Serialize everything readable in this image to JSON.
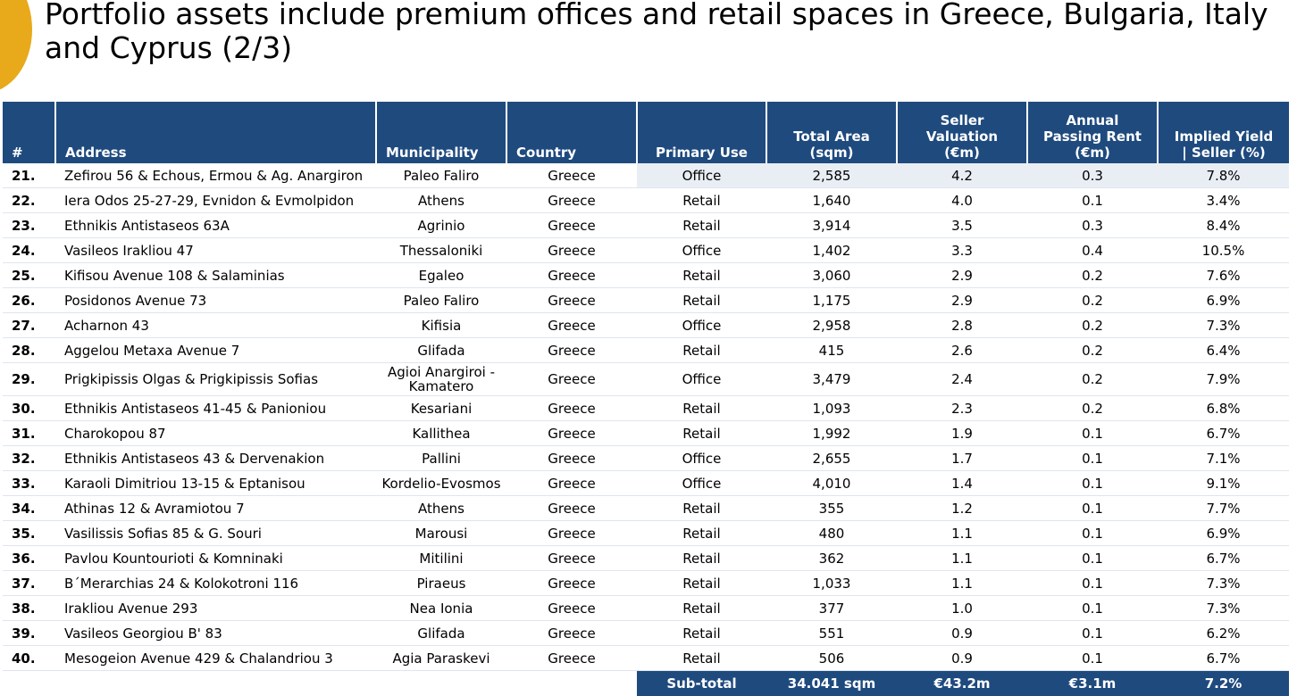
{
  "title": "Portfolio assets include premium offices and retail spaces in Greece, Bulgaria, Italy and Cyprus (2/3)",
  "colors": {
    "header": "#1f4a7e",
    "accent": "#e8a91a",
    "shade": "#e9eef5"
  },
  "table": {
    "headers": {
      "num": "#",
      "address": "Address",
      "municipality": "Municipality",
      "country": "Country",
      "use": "Primary Use",
      "area_1": "Total Area",
      "area_2": "(sqm)",
      "val_1": "Seller",
      "val_2": "Valuation",
      "val_3": "(€m)",
      "rent_1": "Annual",
      "rent_2": "Passing Rent",
      "rent_3": "(€m)",
      "yield_1": "Implied Yield",
      "yield_2": "| Seller (%)"
    },
    "rows": [
      {
        "num": "21.",
        "address": "Zefirou 56 & Echous, Ermou & Ag. Anargiron",
        "municipality": "Paleo Faliro",
        "country": "Greece",
        "use": "Office",
        "area": "2,585",
        "valuation": "4.2",
        "rent": "0.3",
        "yield": "7.8%"
      },
      {
        "num": "22.",
        "address": "Iera Odos 25-27-29, Evnidon & Evmolpidon",
        "municipality": "Athens",
        "country": "Greece",
        "use": "Retail",
        "area": "1,640",
        "valuation": "4.0",
        "rent": "0.1",
        "yield": "3.4%"
      },
      {
        "num": "23.",
        "address": "Ethnikis Antistaseos 63A",
        "municipality": "Agrinio",
        "country": "Greece",
        "use": "Retail",
        "area": "3,914",
        "valuation": "3.5",
        "rent": "0.3",
        "yield": "8.4%"
      },
      {
        "num": "24.",
        "address": "Vasileos Irakliou 47",
        "municipality": "Thessaloniki",
        "country": "Greece",
        "use": "Office",
        "area": "1,402",
        "valuation": "3.3",
        "rent": "0.4",
        "yield": "10.5%"
      },
      {
        "num": "25.",
        "address": "Kifisou Avenue 108 & Salaminias",
        "municipality": "Egaleo",
        "country": "Greece",
        "use": "Retail",
        "area": "3,060",
        "valuation": "2.9",
        "rent": "0.2",
        "yield": "7.6%"
      },
      {
        "num": "26.",
        "address": "Posidonos Avenue 73",
        "municipality": "Paleo Faliro",
        "country": "Greece",
        "use": "Retail",
        "area": "1,175",
        "valuation": "2.9",
        "rent": "0.2",
        "yield": "6.9%"
      },
      {
        "num": "27.",
        "address": "Acharnon 43",
        "municipality": "Kifisia",
        "country": "Greece",
        "use": "Office",
        "area": "2,958",
        "valuation": "2.8",
        "rent": "0.2",
        "yield": "7.3%"
      },
      {
        "num": "28.",
        "address": "Aggelou Metaxa Avenue 7",
        "municipality": "Glifada",
        "country": "Greece",
        "use": "Retail",
        "area": "415",
        "valuation": "2.6",
        "rent": "0.2",
        "yield": "6.4%"
      },
      {
        "num": "29.",
        "address": "Prigkipissis Olgas & Prigkipissis Sofias",
        "municipality": "Agioi Anargiroi - Kamatero",
        "country": "Greece",
        "use": "Office",
        "area": "3,479",
        "valuation": "2.4",
        "rent": "0.2",
        "yield": "7.9%"
      },
      {
        "num": "30.",
        "address": "Ethnikis Antistaseos 41-45 & Panioniou",
        "municipality": "Kesariani",
        "country": "Greece",
        "use": "Retail",
        "area": "1,093",
        "valuation": "2.3",
        "rent": "0.2",
        "yield": "6.8%"
      },
      {
        "num": "31.",
        "address": "Charokopou 87",
        "municipality": "Kallithea",
        "country": "Greece",
        "use": "Retail",
        "area": "1,992",
        "valuation": "1.9",
        "rent": "0.1",
        "yield": "6.7%"
      },
      {
        "num": "32.",
        "address": "Ethnikis Antistaseos 43 & Dervenakion",
        "municipality": "Pallini",
        "country": "Greece",
        "use": "Office",
        "area": "2,655",
        "valuation": "1.7",
        "rent": "0.1",
        "yield": "7.1%"
      },
      {
        "num": "33.",
        "address": "Karaoli Dimitriou 13-15 & Eptanisou",
        "municipality": "Kordelio-Evosmos",
        "country": "Greece",
        "use": "Office",
        "area": "4,010",
        "valuation": "1.4",
        "rent": "0.1",
        "yield": "9.1%"
      },
      {
        "num": "34.",
        "address": "Athinas 12 & Avramiotou 7",
        "municipality": "Athens",
        "country": "Greece",
        "use": "Retail",
        "area": "355",
        "valuation": "1.2",
        "rent": "0.1",
        "yield": "7.7%"
      },
      {
        "num": "35.",
        "address": "Vasilissis Sofias 85 & G. Souri",
        "municipality": "Marousi",
        "country": "Greece",
        "use": "Retail",
        "area": "480",
        "valuation": "1.1",
        "rent": "0.1",
        "yield": "6.9%"
      },
      {
        "num": "36.",
        "address": "Pavlou Kountourioti & Komninaki",
        "municipality": "Mitilini",
        "country": "Greece",
        "use": "Retail",
        "area": "362",
        "valuation": "1.1",
        "rent": "0.1",
        "yield": "6.7%"
      },
      {
        "num": "37.",
        "address": "B΄Merarchias 24 & Kolokotroni 116",
        "municipality": "Piraeus",
        "country": "Greece",
        "use": "Retail",
        "area": "1,033",
        "valuation": "1.1",
        "rent": "0.1",
        "yield": "7.3%"
      },
      {
        "num": "38.",
        "address": "Irakliou Avenue 293",
        "municipality": "Nea Ionia",
        "country": "Greece",
        "use": "Retail",
        "area": "377",
        "valuation": "1.0",
        "rent": "0.1",
        "yield": "7.3%"
      },
      {
        "num": "39.",
        "address": "Vasileos Georgiou B' 83",
        "municipality": "Glifada",
        "country": "Greece",
        "use": "Retail",
        "area": "551",
        "valuation": "0.9",
        "rent": "0.1",
        "yield": "6.2%"
      },
      {
        "num": "40.",
        "address": "Mesogeion Avenue 429 & Chalandriou 3",
        "municipality": "Agia Paraskevi",
        "country": "Greece",
        "use": "Retail",
        "area": "506",
        "valuation": "0.9",
        "rent": "0.1",
        "yield": "6.7%"
      }
    ],
    "subtotal": {
      "label": "Sub-total",
      "area": "34.041 sqm",
      "valuation": "€43.2m",
      "rent": "€3.1m",
      "yield": "7.2%"
    }
  }
}
